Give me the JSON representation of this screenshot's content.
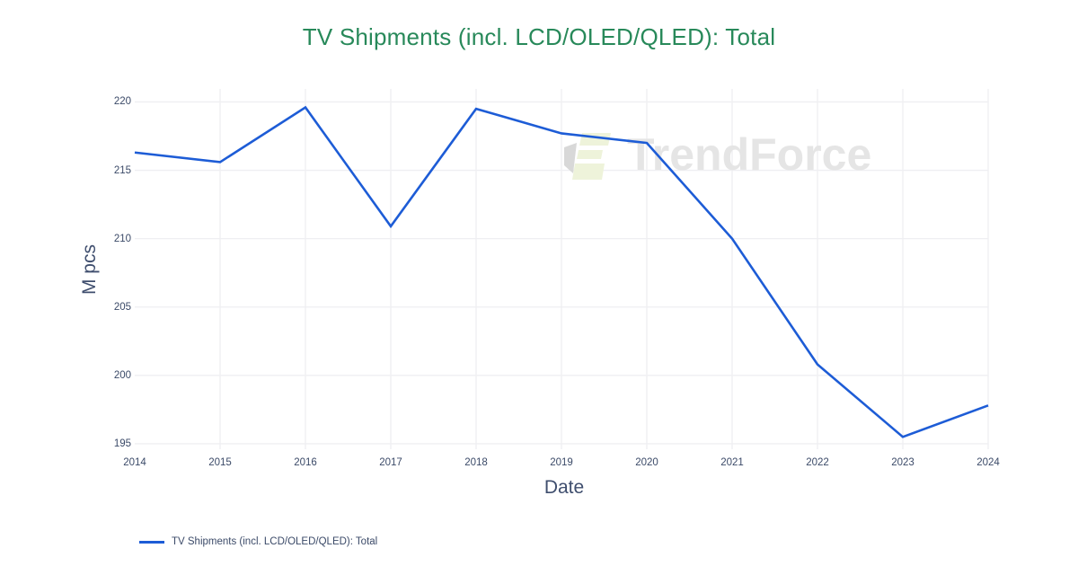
{
  "title": {
    "text": "TV Shipments (incl. LCD/OLED/QLED): Total"
  },
  "watermark": {
    "brand": "TrendForce"
  },
  "legend": {
    "items": [
      {
        "label": "TV Shipments (incl. LCD/OLED/QLED): Total",
        "color": "#1d5cd6"
      }
    ]
  },
  "colors": {
    "title_green": "#28895a",
    "series_blue": "#1d5cd6",
    "axis_text": "#3b4a68",
    "grid": "#efeff2",
    "watermark_gray": "#e5e5e5",
    "logo_gray": "#d8d8d8",
    "logo_green": "#eef3da"
  },
  "chart_data": {
    "type": "line",
    "title": "TV Shipments (incl. LCD/OLED/QLED): Total",
    "xlabel": "Date",
    "ylabel": "M pcs",
    "x": [
      2014,
      2015,
      2016,
      2017,
      2018,
      2019,
      2020,
      2021,
      2022,
      2023,
      2024
    ],
    "series": [
      {
        "name": "TV Shipments (incl. LCD/OLED/QLED): Total",
        "color": "#1d5cd6",
        "values": [
          216.3,
          215.6,
          219.6,
          210.9,
          219.5,
          217.7,
          217.0,
          210.0,
          200.8,
          195.5,
          197.8
        ]
      }
    ],
    "yticks": [
      195,
      200,
      205,
      210,
      215,
      220
    ],
    "xticks": [
      2014,
      2015,
      2016,
      2017,
      2018,
      2019,
      2020,
      2021,
      2022,
      2023,
      2024
    ],
    "ylim": [
      194.6,
      220.95
    ],
    "xlim": [
      2014,
      2024
    ],
    "grid": true,
    "legend_position": "bottom-left"
  }
}
